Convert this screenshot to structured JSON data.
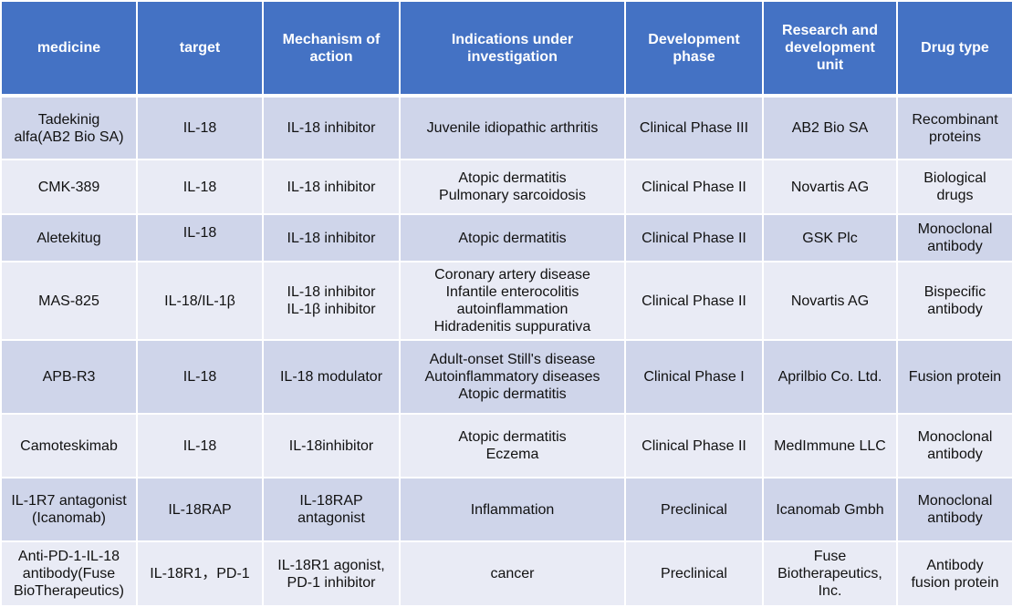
{
  "columns": [
    "medicine",
    "target",
    "Mechanism of\naction",
    "Indications under\ninvestigation",
    "Development\nphase",
    "Research and\ndevelopment\nunit",
    "Drug type"
  ],
  "rows": [
    [
      "Tadekinig\nalfa(AB2 Bio SA)",
      "IL-18",
      "IL-18 inhibitor",
      "Juvenile idiopathic arthritis",
      "Clinical Phase III",
      "AB2 Bio SA",
      "Recombinant\nproteins"
    ],
    [
      "CMK-389",
      "IL-18",
      "IL-18 inhibitor",
      "Atopic dermatitis\nPulmonary sarcoidosis",
      "Clinical Phase II",
      "Novartis AG",
      "Biological\ndrugs"
    ],
    [
      "Aletekitug",
      "IL-18",
      "IL-18 inhibitor",
      "Atopic dermatitis",
      "Clinical Phase  II",
      "GSK Plc",
      "Monoclonal\nantibody"
    ],
    [
      "MAS-825",
      "IL-18/IL-1β",
      "IL-18 inhibitor\nIL-1β inhibitor",
      "Coronary artery disease\nInfantile enterocolitis\nautoinflammation\nHidradenitis suppurativa",
      "Clinical Phase  II",
      "Novartis AG",
      "Bispecific\nantibody"
    ],
    [
      "APB-R3",
      "IL-18",
      "IL-18 modulator",
      "Adult-onset Still's disease\nAutoinflammatory diseases\nAtopic dermatitis",
      "Clinical Phase I",
      "Aprilbio Co. Ltd.",
      "Fusion protein"
    ],
    [
      "Camoteskimab",
      "IL-18",
      "IL-18inhibitor",
      "Atopic dermatitis\nEczema",
      "Clinical Phase II",
      "MedImmune LLC",
      "Monoclonal\nantibody"
    ],
    [
      "IL-1R7 antagonist\n(Icanomab)",
      "IL-18RAP",
      "IL-18RAP\nantagonist",
      "Inflammation",
      "Preclinical",
      "Icanomab Gmbh",
      "Monoclonal\nantibody"
    ],
    [
      "Anti-PD-1-IL-18\nantibody(Fuse\nBioTherapeutics)",
      "IL-18R1，PD-1",
      "IL-18R1 agonist,\nPD-1 inhibitor",
      "cancer",
      "Preclinical",
      "Fuse\nBiotherapeutics,\nInc.",
      "Antibody\nfusion protein"
    ]
  ]
}
